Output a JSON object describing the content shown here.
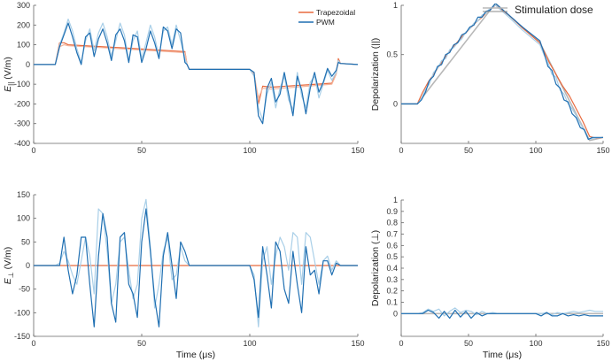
{
  "chart_data": [
    {
      "id": "e_parallel",
      "type": "line",
      "ylabel_main": "E",
      "ylabel_sub": "||",
      "ylabel_unit": " (V/m)",
      "xlabel": "",
      "xlim": [
        0,
        150
      ],
      "ylim": [
        -400,
        300
      ],
      "xticks": [
        0,
        50,
        100,
        150
      ],
      "yticks": [
        -400,
        -300,
        -200,
        -100,
        0,
        100,
        200,
        300
      ],
      "legend": {
        "placement": "top-center",
        "entries": [
          "Trapezoidal",
          "PWM"
        ]
      },
      "series": [
        {
          "name": "Trapezoidal",
          "color": "#e86a3e",
          "x": [
            0,
            10,
            12,
            14,
            16,
            40,
            70,
            71,
            72,
            100,
            102,
            104,
            106,
            110,
            138,
            140,
            141,
            142,
            150
          ],
          "y": [
            0,
            0,
            110,
            110,
            100,
            85,
            65,
            0,
            -25,
            -25,
            -50,
            -200,
            -110,
            -115,
            -95,
            -45,
            30,
            5,
            0
          ]
        },
        {
          "name": "Trapezoidal (light)",
          "color": "#f4b69e",
          "x": [
            0,
            10,
            12,
            14,
            16,
            40,
            70,
            71,
            72,
            100,
            102,
            104,
            106,
            110,
            138,
            140,
            141,
            142,
            150
          ],
          "y": [
            0,
            0,
            90,
            100,
            95,
            80,
            60,
            0,
            -25,
            -25,
            -50,
            -170,
            -120,
            -125,
            -100,
            -50,
            20,
            5,
            0
          ]
        },
        {
          "name": "PWM (light)",
          "color": "#a9cfe8",
          "x": [
            0,
            10,
            12,
            14,
            16,
            18,
            20,
            22,
            24,
            26,
            28,
            30,
            32,
            34,
            36,
            38,
            40,
            42,
            44,
            46,
            48,
            50,
            52,
            54,
            56,
            58,
            60,
            62,
            64,
            66,
            68,
            70,
            71,
            72,
            100,
            102,
            104,
            106,
            108,
            110,
            112,
            114,
            116,
            118,
            120,
            122,
            124,
            126,
            128,
            130,
            132,
            134,
            136,
            138,
            140,
            141,
            142,
            150
          ],
          "y": [
            0,
            0,
            100,
            160,
            230,
            170,
            80,
            10,
            120,
            180,
            70,
            160,
            210,
            140,
            40,
            120,
            210,
            150,
            20,
            120,
            170,
            30,
            110,
            200,
            140,
            40,
            170,
            190,
            100,
            200,
            120,
            30,
            0,
            -25,
            -25,
            -60,
            -220,
            -280,
            -150,
            -90,
            -220,
            -120,
            -60,
            -180,
            -230,
            -40,
            -160,
            -220,
            -90,
            -60,
            -170,
            -100,
            -30,
            -80,
            -40,
            20,
            5,
            0
          ]
        },
        {
          "name": "PWM",
          "color": "#1f6fb2",
          "x": [
            0,
            10,
            12,
            14,
            16,
            18,
            20,
            22,
            24,
            26,
            28,
            30,
            32,
            34,
            36,
            38,
            40,
            42,
            44,
            46,
            48,
            50,
            52,
            54,
            56,
            58,
            60,
            62,
            64,
            66,
            68,
            70,
            71,
            72,
            100,
            102,
            104,
            106,
            108,
            110,
            112,
            114,
            116,
            118,
            120,
            122,
            124,
            126,
            128,
            130,
            132,
            134,
            136,
            138,
            140,
            141,
            142,
            150
          ],
          "y": [
            0,
            0,
            90,
            150,
            210,
            140,
            60,
            0,
            140,
            160,
            40,
            130,
            180,
            110,
            20,
            150,
            180,
            120,
            10,
            150,
            140,
            10,
            80,
            170,
            110,
            30,
            190,
            170,
            80,
            180,
            160,
            10,
            0,
            -25,
            -25,
            -40,
            -260,
            -300,
            -120,
            -70,
            -190,
            -150,
            -40,
            -150,
            -260,
            -60,
            -130,
            -250,
            -120,
            -40,
            -140,
            -90,
            -20,
            -60,
            -30,
            10,
            5,
            0
          ]
        }
      ]
    },
    {
      "id": "depol_parallel",
      "type": "line",
      "ylabel": "Depolarization (||)",
      "xlabel": "",
      "xlim": [
        0,
        150
      ],
      "ylim": [
        -0.4,
        1.0
      ],
      "xticks": [
        0,
        50,
        100,
        150
      ],
      "yticks": [
        0,
        0.5,
        1
      ],
      "ytick_labels": [
        "0",
        "0.5",
        "1"
      ],
      "legend": {
        "placement": "top-right",
        "entries": [
          "Stimulation dose"
        ]
      },
      "series": [
        {
          "name": "Stimulation dose",
          "color": "#b8b8b8",
          "x": [
            0,
            12,
            70,
            103,
            140,
            150
          ],
          "y": [
            0,
            0,
            1.02,
            0.62,
            -0.37,
            -0.34
          ]
        },
        {
          "name": "Trapezoidal",
          "color": "#e86a3e",
          "x": [
            0,
            12,
            16,
            20,
            25,
            30,
            35,
            40,
            45,
            50,
            55,
            60,
            65,
            70,
            80,
            90,
            103,
            110,
            115,
            120,
            125,
            130,
            135,
            140,
            145,
            150
          ],
          "y": [
            0,
            0,
            0.12,
            0.22,
            0.32,
            0.42,
            0.52,
            0.6,
            0.68,
            0.75,
            0.82,
            0.88,
            0.95,
            1.0,
            0.9,
            0.77,
            0.62,
            0.42,
            0.3,
            0.18,
            0.08,
            -0.05,
            -0.18,
            -0.33,
            -0.35,
            -0.34
          ]
        },
        {
          "name": "PWM (light)",
          "color": "#a9cfe8",
          "x": [
            0,
            12,
            15,
            18,
            21,
            24,
            27,
            30,
            33,
            36,
            39,
            42,
            45,
            48,
            51,
            54,
            57,
            60,
            63,
            66,
            70,
            80,
            90,
            103,
            106,
            109,
            112,
            115,
            118,
            121,
            124,
            127,
            130,
            133,
            136,
            139,
            142,
            150
          ],
          "y": [
            0,
            0,
            0.05,
            0.15,
            0.2,
            0.32,
            0.36,
            0.44,
            0.46,
            0.55,
            0.57,
            0.62,
            0.66,
            0.73,
            0.76,
            0.82,
            0.84,
            0.9,
            0.92,
            0.97,
            1.0,
            0.88,
            0.75,
            0.6,
            0.5,
            0.42,
            0.3,
            0.27,
            0.14,
            0.1,
            0.0,
            -0.05,
            -0.12,
            -0.2,
            -0.27,
            -0.36,
            -0.35,
            -0.34
          ]
        },
        {
          "name": "PWM",
          "color": "#1f6fb2",
          "x": [
            0,
            12,
            15,
            18,
            21,
            24,
            27,
            30,
            33,
            36,
            39,
            42,
            45,
            48,
            51,
            54,
            57,
            60,
            63,
            66,
            70,
            80,
            90,
            103,
            106,
            109,
            112,
            115,
            118,
            121,
            124,
            127,
            130,
            133,
            136,
            139,
            142,
            150
          ],
          "y": [
            0,
            0,
            0.04,
            0.12,
            0.24,
            0.28,
            0.38,
            0.4,
            0.5,
            0.52,
            0.6,
            0.62,
            0.7,
            0.72,
            0.78,
            0.8,
            0.88,
            0.88,
            0.94,
            0.95,
            1.02,
            0.9,
            0.78,
            0.64,
            0.52,
            0.38,
            0.34,
            0.2,
            0.16,
            0.04,
            0.02,
            -0.1,
            -0.14,
            -0.24,
            -0.26,
            -0.36,
            -0.34,
            -0.34
          ]
        }
      ]
    },
    {
      "id": "e_perp",
      "type": "line",
      "ylabel_main": "E",
      "ylabel_sub": "⊥",
      "ylabel_unit": " (V/m)",
      "xlabel": "Time (μs)",
      "xlim": [
        0,
        150
      ],
      "ylim": [
        -150,
        150
      ],
      "xticks": [
        0,
        50,
        100,
        150
      ],
      "yticks": [
        -150,
        -100,
        -50,
        0,
        50,
        100,
        150
      ],
      "series": [
        {
          "name": "Trapezoidal",
          "color": "#e86a3e",
          "x": [
            0,
            150
          ],
          "y": [
            0,
            0
          ]
        },
        {
          "name": "PWM (light)",
          "color": "#a9cfe8",
          "x": [
            0,
            10,
            12,
            14,
            16,
            18,
            20,
            22,
            24,
            26,
            28,
            30,
            32,
            34,
            36,
            38,
            40,
            42,
            44,
            46,
            48,
            50,
            52,
            54,
            56,
            58,
            60,
            62,
            64,
            66,
            68,
            70,
            72,
            74,
            100,
            102,
            104,
            106,
            108,
            110,
            112,
            114,
            116,
            118,
            120,
            122,
            124,
            126,
            128,
            130,
            132,
            134,
            136,
            138,
            140,
            142,
            150
          ],
          "y": [
            0,
            0,
            5,
            30,
            10,
            -20,
            -40,
            10,
            60,
            20,
            -60,
            120,
            110,
            30,
            -80,
            -40,
            50,
            60,
            -10,
            -70,
            -40,
            100,
            140,
            40,
            -90,
            -40,
            30,
            60,
            -30,
            -20,
            40,
            10,
            0,
            0,
            0,
            -20,
            -130,
            10,
            40,
            -40,
            20,
            60,
            40,
            -10,
            70,
            60,
            -40,
            70,
            60,
            10,
            -40,
            10,
            20,
            -10,
            10,
            0,
            0
          ]
        },
        {
          "name": "PWM",
          "color": "#1f6fb2",
          "x": [
            0,
            10,
            12,
            14,
            16,
            18,
            20,
            22,
            24,
            26,
            28,
            30,
            32,
            34,
            36,
            38,
            40,
            42,
            44,
            46,
            48,
            50,
            52,
            54,
            56,
            58,
            60,
            62,
            64,
            66,
            68,
            70,
            72,
            74,
            100,
            102,
            104,
            106,
            108,
            110,
            112,
            114,
            116,
            118,
            120,
            122,
            124,
            126,
            128,
            130,
            132,
            134,
            136,
            138,
            140,
            142,
            150
          ],
          "y": [
            0,
            0,
            0,
            60,
            -10,
            -60,
            -20,
            60,
            60,
            -40,
            -130,
            20,
            110,
            60,
            -80,
            -120,
            60,
            70,
            -40,
            -60,
            -110,
            50,
            120,
            30,
            -70,
            -130,
            20,
            70,
            0,
            -70,
            50,
            30,
            0,
            0,
            0,
            -30,
            -110,
            40,
            -20,
            -90,
            50,
            30,
            -50,
            -80,
            30,
            -40,
            -100,
            40,
            -20,
            -10,
            -60,
            10,
            10,
            -20,
            5,
            0,
            0
          ]
        }
      ]
    },
    {
      "id": "depol_perp",
      "type": "line",
      "ylabel": "Depolarization (⊥)",
      "xlabel": "Time (μs)",
      "xlim": [
        0,
        150
      ],
      "ylim": [
        -0.2,
        1.0
      ],
      "xticks": [
        0,
        50,
        100,
        150
      ],
      "yticks": [
        0,
        0.1,
        0.2,
        0.3,
        0.4,
        0.5,
        0.6,
        0.7,
        0.8,
        0.9,
        1
      ],
      "ytick_labels": [
        "0",
        "0.1",
        "0.2",
        "0.3",
        "0.4",
        "0.5",
        "0.6",
        "0.7",
        "0.8",
        "0.9",
        "1"
      ],
      "series": [
        {
          "name": "Stimulation dose",
          "color": "#b8b8b8",
          "x": [
            0,
            150
          ],
          "y": [
            0,
            0
          ]
        },
        {
          "name": "PWM (light)",
          "color": "#a9cfe8",
          "x": [
            0,
            12,
            16,
            20,
            24,
            28,
            32,
            36,
            40,
            44,
            48,
            52,
            56,
            60,
            64,
            68,
            72,
            100,
            104,
            108,
            112,
            116,
            120,
            124,
            128,
            132,
            136,
            140,
            144,
            150
          ],
          "y": [
            0,
            0,
            0.01,
            0.04,
            0.02,
            0.04,
            -0.02,
            0.02,
            0.05,
            0.01,
            0.03,
            0.02,
            -0.01,
            0.02,
            0.0,
            0.01,
            0.0,
            0.0,
            0.0,
            0.01,
            -0.01,
            0.01,
            0.0,
            0.01,
            0.02,
            0.01,
            0.02,
            0.03,
            0.02,
            0.02
          ]
        },
        {
          "name": "PWM",
          "color": "#1f6fb2",
          "x": [
            0,
            12,
            16,
            20,
            24,
            28,
            32,
            36,
            40,
            44,
            48,
            52,
            56,
            60,
            64,
            68,
            72,
            100,
            104,
            108,
            112,
            116,
            120,
            124,
            128,
            132,
            136,
            140,
            144,
            150
          ],
          "y": [
            0,
            0,
            0.0,
            0.03,
            0.01,
            -0.04,
            0.02,
            -0.04,
            0.03,
            -0.03,
            0.02,
            -0.04,
            0.01,
            -0.02,
            0.0,
            0.0,
            0.0,
            0.0,
            -0.02,
            0.01,
            -0.02,
            -0.02,
            0.0,
            -0.02,
            -0.01,
            -0.02,
            -0.01,
            -0.02,
            -0.02,
            -0.02
          ]
        }
      ]
    }
  ]
}
